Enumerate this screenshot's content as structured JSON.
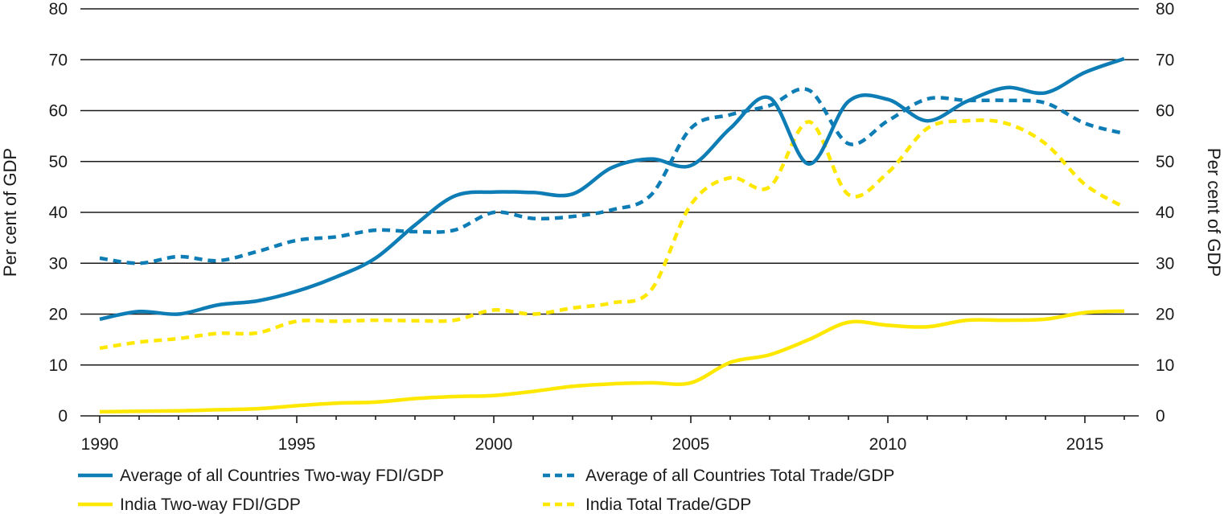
{
  "chart_data": {
    "type": "line",
    "title": "",
    "ylabel_left": "Per cent of GDP",
    "ylabel_right": "Per cent of GDP",
    "xlabel": "",
    "ylim": [
      0,
      80
    ],
    "xlim": [
      1990,
      2016
    ],
    "y_ticks": [
      "0",
      "10",
      "20",
      "30",
      "40",
      "50",
      "60",
      "70",
      "80"
    ],
    "x_ticks": [
      "1990",
      "1995",
      "2000",
      "2005",
      "2010",
      "2015"
    ],
    "x": [
      1990,
      1991,
      1992,
      1993,
      1994,
      1995,
      1996,
      1997,
      1998,
      1999,
      2000,
      2001,
      2002,
      2003,
      2004,
      2005,
      2006,
      2007,
      2008,
      2009,
      2010,
      2011,
      2012,
      2013,
      2014,
      2015,
      2016
    ],
    "grid": true,
    "legend_position": "bottom",
    "series": [
      {
        "name": "Average of all Countries Two-way FDI/GDP",
        "color": "#0e7db5",
        "dashed": false,
        "values": [
          19,
          20.5,
          20,
          21.8,
          22.6,
          24.5,
          27.3,
          31,
          37.5,
          43.2,
          44,
          43.9,
          43.6,
          48.8,
          50.5,
          49.2,
          56.5,
          62.5,
          49.5,
          61.8,
          62.2,
          58,
          61.8,
          64.5,
          63.5,
          67.5,
          70.2
        ]
      },
      {
        "name": "Average of all Countries Total Trade/GDP",
        "color": "#0e7db5",
        "dashed": true,
        "values": [
          31,
          30,
          31.3,
          30.5,
          32.3,
          34.5,
          35.2,
          36.5,
          36.2,
          36.5,
          40,
          38.8,
          39.2,
          40.5,
          43.5,
          56.5,
          59.2,
          61,
          64,
          53.5,
          58,
          62.3,
          62,
          62,
          61.5,
          57.5,
          55.5
        ]
      },
      {
        "name": "India Two-way FDI/GDP",
        "color": "#ffe800",
        "dashed": false,
        "values": [
          0.8,
          0.9,
          1,
          1.2,
          1.4,
          2,
          2.5,
          2.7,
          3.4,
          3.8,
          4,
          4.8,
          5.8,
          6.3,
          6.5,
          6.5,
          10.5,
          12,
          15,
          18.4,
          17.8,
          17.5,
          18.8,
          18.8,
          19,
          20.3,
          20.6
        ]
      },
      {
        "name": "India Total Trade/GDP",
        "color": "#ffe800",
        "dashed": true,
        "values": [
          13.3,
          14.5,
          15.2,
          16.2,
          16.3,
          18.6,
          18.6,
          18.8,
          18.7,
          18.8,
          20.8,
          20,
          21.2,
          22.2,
          24.8,
          41.5,
          46.8,
          45,
          57.8,
          43.5,
          47.8,
          56.5,
          58,
          57.5,
          53.5,
          45.5,
          41
        ]
      }
    ]
  }
}
